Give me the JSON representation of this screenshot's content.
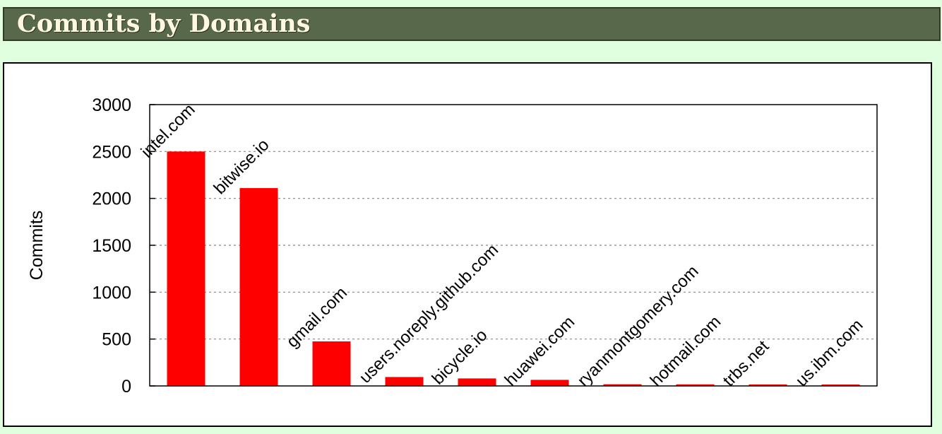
{
  "header": {
    "title": "Commits by Domains"
  },
  "colors": {
    "bar": "#ff0000",
    "header_bg": "#57694a",
    "page_bg": "#dfffdf"
  },
  "chart_data": {
    "type": "bar",
    "title": "",
    "xlabel": "",
    "ylabel": "Commits",
    "ylim": [
      0,
      3000
    ],
    "yticks": [
      0,
      500,
      1000,
      1500,
      2000,
      2500,
      3000
    ],
    "grid": "horizontal-dashed",
    "categories": [
      "intel.com",
      "bitwise.io",
      "gmail.com",
      "users.noreply.github.com",
      "bicycle.io",
      "huawei.com",
      "ryanmontgomery.com",
      "hotmail.com",
      "trbs.net",
      "us.ibm.com"
    ],
    "values": [
      2500,
      2110,
      475,
      95,
      80,
      65,
      18,
      17,
      16,
      15
    ]
  }
}
